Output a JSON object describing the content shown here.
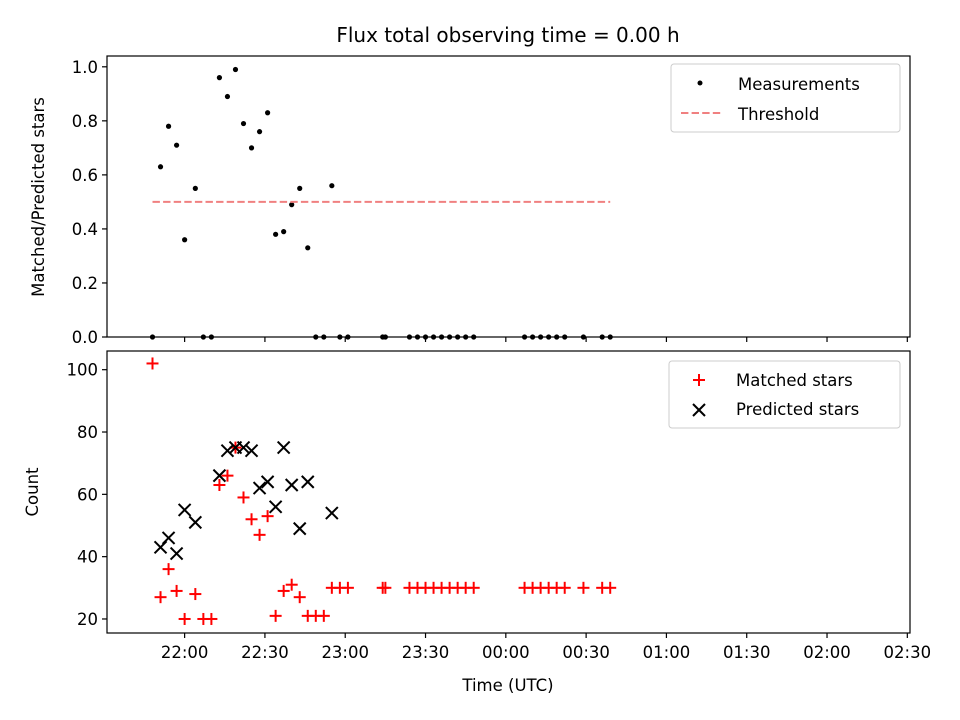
{
  "chart_data": [
    {
      "type": "scatter",
      "title": "Flux total observing time = 0.00 h",
      "xlabel": "",
      "ylabel": "Matched/Predicted stars",
      "xlim": [
        "21:31",
        "02:31"
      ],
      "ylim": [
        0,
        1.04
      ],
      "yticks": [
        "0.0",
        "0.2",
        "0.4",
        "0.6",
        "0.8",
        "1.0"
      ],
      "legend_position": "top-right",
      "grid": false,
      "series": [
        {
          "name": "Measurements",
          "marker": "dot",
          "color": "#000000",
          "points": [
            [
              "21:48",
              0.0
            ],
            [
              "21:51",
              0.63
            ],
            [
              "21:54",
              0.78
            ],
            [
              "21:57",
              0.71
            ],
            [
              "22:00",
              0.36
            ],
            [
              "22:04",
              0.55
            ],
            [
              "22:07",
              0.0
            ],
            [
              "22:10",
              0.0
            ],
            [
              "22:13",
              0.96
            ],
            [
              "22:16",
              0.89
            ],
            [
              "22:19",
              0.99
            ],
            [
              "22:22",
              0.79
            ],
            [
              "22:25",
              0.7
            ],
            [
              "22:28",
              0.76
            ],
            [
              "22:31",
              0.83
            ],
            [
              "22:34",
              0.38
            ],
            [
              "22:37",
              0.39
            ],
            [
              "22:40",
              0.49
            ],
            [
              "22:43",
              0.55
            ],
            [
              "22:46",
              0.33
            ],
            [
              "22:49",
              0.0
            ],
            [
              "22:52",
              0.0
            ],
            [
              "22:55",
              0.56
            ],
            [
              "22:58",
              0.0
            ],
            [
              "23:01",
              0.0
            ],
            [
              "23:14",
              0.0
            ],
            [
              "23:15",
              0.0
            ],
            [
              "23:24",
              0.0
            ],
            [
              "23:27",
              0.0
            ],
            [
              "23:30",
              0.0
            ],
            [
              "23:33",
              0.0
            ],
            [
              "23:36",
              0.0
            ],
            [
              "23:39",
              0.0
            ],
            [
              "23:42",
              0.0
            ],
            [
              "23:45",
              0.0
            ],
            [
              "23:48",
              0.0
            ],
            [
              "00:07",
              0.0
            ],
            [
              "00:10",
              0.0
            ],
            [
              "00:13",
              0.0
            ],
            [
              "00:16",
              0.0
            ],
            [
              "00:19",
              0.0
            ],
            [
              "00:22",
              0.0
            ],
            [
              "00:29",
              0.0
            ],
            [
              "00:36",
              0.0
            ],
            [
              "00:39",
              0.0
            ]
          ]
        },
        {
          "name": "Threshold",
          "marker": "dashed-line",
          "color": "#f08080",
          "points": [
            [
              "21:48",
              0.5
            ],
            [
              "00:39",
              0.5
            ]
          ]
        }
      ]
    },
    {
      "type": "scatter",
      "title": "",
      "xlabel": "Time (UTC)",
      "ylabel": "Count",
      "xlim": [
        "21:31",
        "02:31"
      ],
      "ylim": [
        15.5,
        106
      ],
      "yticks": [
        "20",
        "40",
        "60",
        "80",
        "100"
      ],
      "xticks": [
        "22:00",
        "22:30",
        "23:00",
        "23:30",
        "00:00",
        "00:30",
        "01:00",
        "01:30",
        "02:00",
        "02:30"
      ],
      "legend_position": "top-right",
      "grid": false,
      "series": [
        {
          "name": "Matched stars",
          "marker": "plus",
          "color": "#ff0000",
          "points": [
            [
              "21:48",
              102
            ],
            [
              "21:51",
              27
            ],
            [
              "21:54",
              36
            ],
            [
              "21:57",
              29
            ],
            [
              "22:00",
              20
            ],
            [
              "22:04",
              28
            ],
            [
              "22:07",
              20
            ],
            [
              "22:10",
              20
            ],
            [
              "22:13",
              63
            ],
            [
              "22:16",
              66
            ],
            [
              "22:19",
              75
            ],
            [
              "22:22",
              59
            ],
            [
              "22:25",
              52
            ],
            [
              "22:28",
              47
            ],
            [
              "22:31",
              53
            ],
            [
              "22:34",
              21
            ],
            [
              "22:37",
              29
            ],
            [
              "22:40",
              31
            ],
            [
              "22:43",
              27
            ],
            [
              "22:46",
              21
            ],
            [
              "22:49",
              21
            ],
            [
              "22:52",
              21
            ],
            [
              "22:55",
              30
            ],
            [
              "22:58",
              30
            ],
            [
              "23:01",
              30
            ],
            [
              "23:14",
              30
            ],
            [
              "23:15",
              30
            ],
            [
              "23:24",
              30
            ],
            [
              "23:27",
              30
            ],
            [
              "23:30",
              30
            ],
            [
              "23:33",
              30
            ],
            [
              "23:36",
              30
            ],
            [
              "23:39",
              30
            ],
            [
              "23:42",
              30
            ],
            [
              "23:45",
              30
            ],
            [
              "23:48",
              30
            ],
            [
              "00:07",
              30
            ],
            [
              "00:10",
              30
            ],
            [
              "00:13",
              30
            ],
            [
              "00:16",
              30
            ],
            [
              "00:19",
              30
            ],
            [
              "00:22",
              30
            ],
            [
              "00:29",
              30
            ],
            [
              "00:36",
              30
            ],
            [
              "00:39",
              30
            ]
          ]
        },
        {
          "name": "Predicted stars",
          "marker": "x",
          "color": "#000000",
          "points": [
            [
              "21:51",
              43
            ],
            [
              "21:54",
              46
            ],
            [
              "21:57",
              41
            ],
            [
              "22:00",
              55
            ],
            [
              "22:04",
              51
            ],
            [
              "22:13",
              66
            ],
            [
              "22:16",
              74
            ],
            [
              "22:19",
              75
            ],
            [
              "22:22",
              75
            ],
            [
              "22:25",
              74
            ],
            [
              "22:28",
              62
            ],
            [
              "22:31",
              64
            ],
            [
              "22:34",
              56
            ],
            [
              "22:37",
              75
            ],
            [
              "22:40",
              63
            ],
            [
              "22:43",
              49
            ],
            [
              "22:46",
              64
            ],
            [
              "22:55",
              54
            ]
          ]
        }
      ]
    }
  ]
}
